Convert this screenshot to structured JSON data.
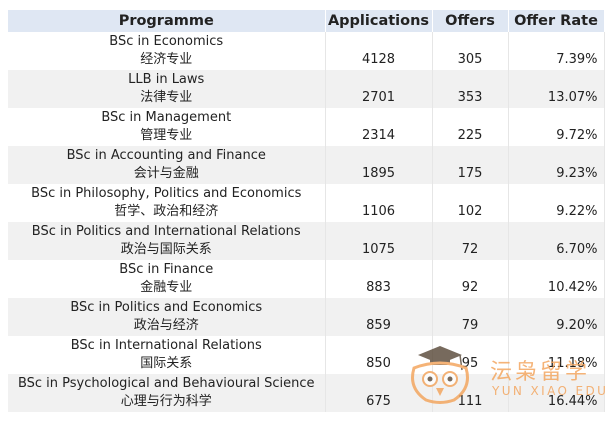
{
  "headers": [
    "Programme",
    "Applications",
    "Offers",
    "Offer Rate"
  ],
  "rows": [
    {
      "en": "BSc in Economics",
      "cn": "经济专业",
      "applications": "4128",
      "offers": "305",
      "rate": "7.39%"
    },
    {
      "en": "LLB in Laws",
      "cn": "法律专业",
      "applications": "2701",
      "offers": "353",
      "rate": "13.07%"
    },
    {
      "en": "BSc in Management",
      "cn": "管理专业",
      "applications": "2314",
      "offers": "225",
      "rate": "9.72%"
    },
    {
      "en": "BSc in Accounting and Finance",
      "cn": "会计与金融",
      "applications": "1895",
      "offers": "175",
      "rate": "9.23%"
    },
    {
      "en": "BSc in Philosophy, Politics and Economics",
      "cn": "哲学、政治和经济",
      "applications": "1106",
      "offers": "102",
      "rate": "9.22%"
    },
    {
      "en": "BSc in Politics and International Relations",
      "cn": "政治与国际关系",
      "applications": "1075",
      "offers": "72",
      "rate": "6.70%"
    },
    {
      "en": "BSc in Finance",
      "cn": "金融专业",
      "applications": "883",
      "offers": "92",
      "rate": "10.42%"
    },
    {
      "en": "BSc in Politics and Economics",
      "cn": "政治与经济",
      "applications": "859",
      "offers": "79",
      "rate": "9.20%"
    },
    {
      "en": "BSc in International Relations",
      "cn": "国际关系",
      "applications": "850",
      "offers": "95",
      "rate": "11.18%"
    },
    {
      "en": "BSc in Psychological and Behavioural Science",
      "cn": "心理与行为科学",
      "applications": "675",
      "offers": "111",
      "rate": "16.44%"
    }
  ],
  "watermark": {
    "text_cn": "沄枭留学",
    "text_en": "YUN XIAO EDU",
    "color": "#f3a35a",
    "icon": "owl-graduation-cap-icon"
  }
}
